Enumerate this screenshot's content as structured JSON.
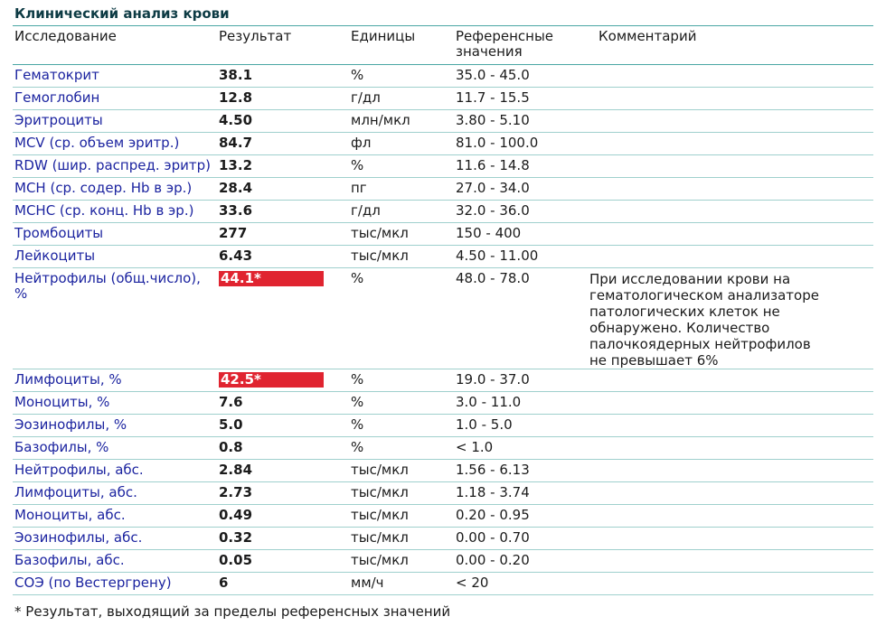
{
  "title": "Клинический анализ крови",
  "table": {
    "header": [
      "Исследование",
      "Результат",
      "Единицы",
      "Референсные значения",
      "Комментарий"
    ],
    "rows": [
      {
        "name": "Гематокрит",
        "result": "38.1",
        "unit": "%",
        "ref": "35.0 - 45.0"
      },
      {
        "name": "Гемоглобин",
        "result": "12.8",
        "unit": "г/дл",
        "ref": "11.7 - 15.5"
      },
      {
        "name": "Эритроциты",
        "result": "4.50",
        "unit": "млн/мкл",
        "ref": "3.80 - 5.10"
      },
      {
        "name": "MCV (ср. объем эритр.)",
        "result": "84.7",
        "unit": "фл",
        "ref": "81.0 - 100.0"
      },
      {
        "name": "RDW (шир. распред. эритр)",
        "result": "13.2",
        "unit": "%",
        "ref": "11.6 - 14.8"
      },
      {
        "name": "MCH (ср. содер. Hb в эр.)",
        "result": "28.4",
        "unit": "пг",
        "ref": "27.0 - 34.0"
      },
      {
        "name": "MCHC (ср. конц. Hb в эр.)",
        "result": "33.6",
        "unit": "г/дл",
        "ref": "32.0 - 36.0"
      },
      {
        "name": "Тромбоциты",
        "result": "277",
        "unit": "тыс/мкл",
        "ref": "150 - 400"
      },
      {
        "name": "Лейкоциты",
        "result": "6.43",
        "unit": "тыс/мкл",
        "ref": "4.50 - 11.00"
      },
      {
        "name": "Нейтрофилы (общ.число), %",
        "result": "44.1*",
        "flag": true,
        "unit": "%",
        "ref": "48.0 - 78.0",
        "comment": "При исследовании крови на гематологическом анализаторе патологических клеток не обнаружено. Количество палочкоядерных нейтрофилов не превышает 6%"
      },
      {
        "name": "Лимфоциты, %",
        "result": "42.5*",
        "flag": true,
        "unit": "%",
        "ref": "19.0 - 37.0"
      },
      {
        "name": "Моноциты, %",
        "result": "7.6",
        "unit": "%",
        "ref": "3.0 - 11.0"
      },
      {
        "name": "Эозинофилы, %",
        "result": "5.0",
        "unit": "%",
        "ref": "1.0 - 5.0"
      },
      {
        "name": "Базофилы, %",
        "result": "0.8",
        "unit": "%",
        "ref": "< 1.0"
      },
      {
        "name": "Нейтрофилы, абс.",
        "result": "2.84",
        "unit": "тыс/мкл",
        "ref": "1.56 - 6.13"
      },
      {
        "name": "Лимфоциты, абс.",
        "result": "2.73",
        "unit": "тыс/мкл",
        "ref": "1.18 - 3.74"
      },
      {
        "name": "Моноциты, абс.",
        "result": "0.49",
        "unit": "тыс/мкл",
        "ref": "0.20 - 0.95"
      },
      {
        "name": "Эозинофилы, абс.",
        "result": "0.32",
        "unit": "тыс/мкл",
        "ref": "0.00 - 0.70"
      },
      {
        "name": "Базофилы, абс.",
        "result": "0.05",
        "unit": "тыс/мкл",
        "ref": "0.00 - 0.20"
      },
      {
        "name": "СОЭ (по Вестергрену)",
        "result": "6",
        "unit": "мм/ч",
        "ref": "< 20"
      }
    ]
  },
  "footnote": "* Результат, выходящий за пределы референсных значений"
}
